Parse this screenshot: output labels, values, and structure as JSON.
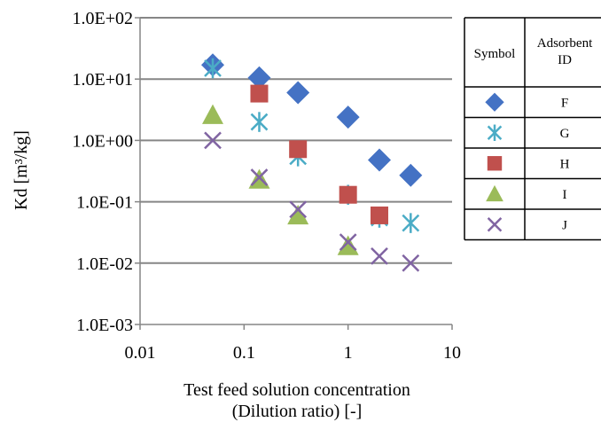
{
  "chart_data": {
    "type": "scatter",
    "title": "",
    "xlabel_lines": [
      "Test feed solution concentration",
      "(Dilution ratio) [-]"
    ],
    "ylabel": "Kd [m³/kg]",
    "xscale": "log",
    "yscale": "log",
    "xlim": [
      0.01,
      10
    ],
    "ylim": [
      0.001,
      100
    ],
    "xticks": [
      {
        "value": 0.01,
        "label": "0.01"
      },
      {
        "value": 0.1,
        "label": "0.1"
      },
      {
        "value": 1,
        "label": "1"
      },
      {
        "value": 10,
        "label": "10"
      }
    ],
    "yticks": [
      {
        "value": 100,
        "label": "1.0E+02"
      },
      {
        "value": 10,
        "label": "1.0E+01"
      },
      {
        "value": 1,
        "label": "1.0E+00"
      },
      {
        "value": 0.1,
        "label": "1.0E-01"
      },
      {
        "value": 0.01,
        "label": "1.0E-02"
      },
      {
        "value": 0.001,
        "label": "1.0E-03"
      }
    ],
    "grid": "horizontal",
    "legend_placement": "right",
    "legend_headers": [
      "Symbol",
      "Adsorbent ID"
    ],
    "series": [
      {
        "name": "F",
        "marker": "diamond",
        "color": "#4472C4",
        "points": [
          [
            0.05,
            17
          ],
          [
            0.14,
            10.5
          ],
          [
            0.33,
            6.0
          ],
          [
            1.0,
            2.4
          ],
          [
            2.0,
            0.48
          ],
          [
            4.0,
            0.27
          ]
        ]
      },
      {
        "name": "G",
        "marker": "asterisk",
        "color": "#4BACC6",
        "points": [
          [
            0.05,
            15
          ],
          [
            0.14,
            2.0
          ],
          [
            0.33,
            0.55
          ],
          [
            1.0,
            0.13
          ],
          [
            2.0,
            0.055
          ],
          [
            4.0,
            0.045
          ]
        ]
      },
      {
        "name": "H",
        "marker": "square",
        "color": "#C0504D",
        "points": [
          [
            0.14,
            5.8
          ],
          [
            0.33,
            0.72
          ],
          [
            1.0,
            0.13
          ],
          [
            2.0,
            0.06
          ]
        ]
      },
      {
        "name": "I",
        "marker": "triangle",
        "color": "#9BBB59",
        "points": [
          [
            0.05,
            2.6
          ],
          [
            0.14,
            0.23
          ],
          [
            0.33,
            0.06
          ],
          [
            1.0,
            0.019
          ]
        ]
      },
      {
        "name": "J",
        "marker": "x",
        "color": "#8064A2",
        "points": [
          [
            0.05,
            1.0
          ],
          [
            0.14,
            0.25
          ],
          [
            0.33,
            0.075
          ],
          [
            1.0,
            0.022
          ],
          [
            2.0,
            0.013
          ],
          [
            4.0,
            0.01
          ]
        ]
      }
    ]
  }
}
